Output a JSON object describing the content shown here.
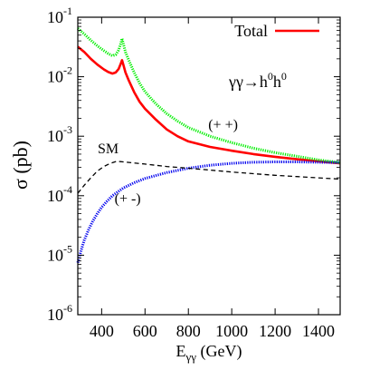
{
  "chart_data": {
    "type": "line",
    "title": "",
    "xlabel": {
      "base": "E",
      "sub": "γγ",
      "unit": " (GeV)"
    },
    "ylabel": "σ (pb)",
    "xlim": [
      290,
      1500
    ],
    "ylim": [
      1e-06,
      0.1
    ],
    "log_y": true,
    "grid": false,
    "x_ticks": [
      400,
      600,
      800,
      1000,
      1200,
      1400
    ],
    "x_tick_labels": [
      "400",
      "600",
      "800",
      "1000",
      "1200",
      "1400"
    ],
    "y_ticks": [
      {
        "value": 0.1,
        "base": "10",
        "exp": "-1"
      },
      {
        "value": 0.01,
        "base": "10",
        "exp": "-2"
      },
      {
        "value": 0.001,
        "base": "10",
        "exp": "-3"
      },
      {
        "value": 0.0001,
        "base": "10",
        "exp": "-4"
      },
      {
        "value": 1e-05,
        "base": "10",
        "exp": "-5"
      },
      {
        "value": 1e-06,
        "base": "10",
        "exp": "-6"
      }
    ],
    "legend": {
      "position": "top-right",
      "entries": [
        {
          "label": "Total",
          "color": "#ff0000"
        }
      ]
    },
    "process_label": {
      "prefix": "γγ→h",
      "sup1": "0",
      "mid": "h",
      "sup2": "0"
    },
    "series": [
      {
        "name": "Total",
        "color": "#ff0000",
        "style": "solid",
        "points": [
          [
            290,
            0.032
          ],
          [
            320,
            0.026
          ],
          [
            350,
            0.02
          ],
          [
            380,
            0.016
          ],
          [
            410,
            0.0133
          ],
          [
            430,
            0.012
          ],
          [
            450,
            0.0113
          ],
          [
            465,
            0.0118
          ],
          [
            478,
            0.0135
          ],
          [
            488,
            0.0165
          ],
          [
            494,
            0.019
          ],
          [
            500,
            0.016
          ],
          [
            510,
            0.0118
          ],
          [
            525,
            0.0087
          ],
          [
            550,
            0.0055
          ],
          [
            575,
            0.0038
          ],
          [
            600,
            0.0029
          ],
          [
            650,
            0.0019
          ],
          [
            700,
            0.0013
          ],
          [
            750,
            0.001
          ],
          [
            800,
            0.00082
          ],
          [
            900,
            0.00066
          ],
          [
            1000,
            0.00057
          ],
          [
            1100,
            0.0005
          ],
          [
            1200,
            0.00045
          ],
          [
            1300,
            0.00041
          ],
          [
            1400,
            0.00038
          ],
          [
            1500,
            0.00035
          ]
        ]
      },
      {
        "name": "(+ +)",
        "color": "#00ee00",
        "style": "dotted",
        "points": [
          [
            290,
            0.065
          ],
          [
            320,
            0.052
          ],
          [
            350,
            0.041
          ],
          [
            380,
            0.033
          ],
          [
            410,
            0.0275
          ],
          [
            430,
            0.0245
          ],
          [
            450,
            0.0225
          ],
          [
            465,
            0.0235
          ],
          [
            478,
            0.028
          ],
          [
            488,
            0.036
          ],
          [
            494,
            0.044
          ],
          [
            500,
            0.036
          ],
          [
            510,
            0.026
          ],
          [
            525,
            0.019
          ],
          [
            550,
            0.0118
          ],
          [
            575,
            0.0078
          ],
          [
            600,
            0.0056
          ],
          [
            650,
            0.0035
          ],
          [
            700,
            0.0024
          ],
          [
            750,
            0.0018
          ],
          [
            800,
            0.0014
          ],
          [
            900,
            0.001
          ],
          [
            1000,
            0.00078
          ],
          [
            1100,
            0.00063
          ],
          [
            1200,
            0.00053
          ],
          [
            1300,
            0.00046
          ],
          [
            1400,
            0.0004
          ],
          [
            1500,
            0.00036
          ]
        ]
      },
      {
        "name": "(+ -)",
        "color": "#0000ee",
        "style": "dotted",
        "points": [
          [
            290,
            7.5e-06
          ],
          [
            305,
            1.2e-05
          ],
          [
            320,
            1.8e-05
          ],
          [
            340,
            2.7e-05
          ],
          [
            360,
            3.8e-05
          ],
          [
            380,
            5e-05
          ],
          [
            400,
            6.4e-05
          ],
          [
            425,
            8.1e-05
          ],
          [
            450,
            0.0001
          ],
          [
            500,
            0.000135
          ],
          [
            550,
            0.000165
          ],
          [
            600,
            0.000195
          ],
          [
            700,
            0.000245
          ],
          [
            800,
            0.00029
          ],
          [
            900,
            0.000325
          ],
          [
            1000,
            0.00035
          ],
          [
            1100,
            0.000365
          ],
          [
            1200,
            0.00037
          ],
          [
            1300,
            0.00037
          ],
          [
            1400,
            0.000365
          ],
          [
            1500,
            0.00036
          ]
        ]
      },
      {
        "name": "SM",
        "color": "#000000",
        "style": "dashed",
        "points": [
          [
            290,
            0.00011
          ],
          [
            320,
            0.00015
          ],
          [
            350,
            0.0002
          ],
          [
            380,
            0.00026
          ],
          [
            410,
            0.00031
          ],
          [
            440,
            0.00035
          ],
          [
            470,
            0.00038
          ],
          [
            500,
            0.00037
          ],
          [
            600,
            0.00034
          ],
          [
            700,
            0.00031
          ],
          [
            800,
            0.00029
          ],
          [
            900,
            0.00027
          ],
          [
            1000,
            0.00025
          ],
          [
            1100,
            0.000235
          ],
          [
            1200,
            0.00022
          ],
          [
            1300,
            0.00021
          ],
          [
            1400,
            0.0002
          ],
          [
            1500,
            0.00019
          ]
        ]
      }
    ],
    "annotations": [
      {
        "text": "(+ +)",
        "series": "(+ +)",
        "x": 960,
        "y": 0.0013
      },
      {
        "text": "SM",
        "series": "SM",
        "x": 430,
        "y": 0.00052
      },
      {
        "text": "(+ -)",
        "series": "(+ -)",
        "x": 520,
        "y": 7.5e-05
      }
    ]
  }
}
